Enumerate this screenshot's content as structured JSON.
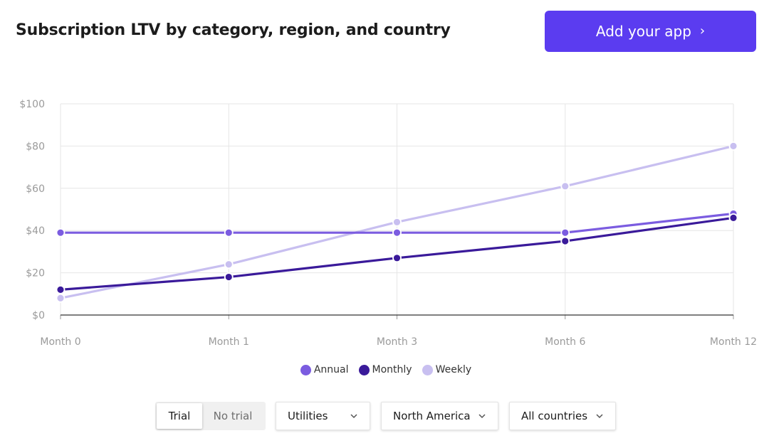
{
  "header": {
    "title": "Subscription LTV by category, region, and country",
    "cta_label": "Add your app",
    "cta_color": "#5b3cf0"
  },
  "chart_data": {
    "type": "line",
    "categories": [
      "Month 0",
      "Month 1",
      "Month 3",
      "Month 6",
      "Month 12"
    ],
    "y_ticks": [
      "$0",
      "$20",
      "$40",
      "$60",
      "$80",
      "$100"
    ],
    "ylim": [
      0,
      100
    ],
    "grid": true,
    "legend_position": "bottom",
    "series": [
      {
        "name": "Annual",
        "color": "#7b5ce0",
        "values": [
          39,
          39,
          39,
          39,
          48
        ]
      },
      {
        "name": "Monthly",
        "color": "#3a1a9a",
        "values": [
          12,
          18,
          27,
          35,
          46
        ]
      },
      {
        "name": "Weekly",
        "color": "#c8bff0",
        "values": [
          8,
          24,
          44,
          61,
          80
        ]
      }
    ]
  },
  "controls": {
    "toggle": {
      "trial": "Trial",
      "no_trial": "No trial",
      "selected": "Trial"
    },
    "category_select": "Utilities",
    "region_select": "North America",
    "country_select": "All countries"
  }
}
